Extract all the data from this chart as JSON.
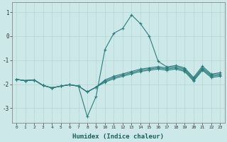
{
  "xlabel": "Humidex (Indice chaleur)",
  "background_color": "#cce8e8",
  "grid_color": "#b8d8d8",
  "line_color": "#2d7d7d",
  "xlim": [
    -0.5,
    23.5
  ],
  "ylim": [
    -3.6,
    1.4
  ],
  "yticks": [
    -3,
    -2,
    -1,
    0,
    1
  ],
  "xtick_labels": [
    "0",
    "1",
    "2",
    "3",
    "4",
    "5",
    "6",
    "7",
    "8",
    "9",
    "10",
    "11",
    "12",
    "13",
    "14",
    "15",
    "16",
    "17",
    "18",
    "19",
    "20",
    "21",
    "22",
    "23"
  ],
  "series": [
    [
      [
        0,
        -1.8
      ],
      [
        1,
        -1.85
      ],
      [
        2,
        -1.82
      ],
      [
        3,
        -2.05
      ],
      [
        4,
        -2.15
      ],
      [
        5,
        -2.08
      ],
      [
        6,
        -2.02
      ],
      [
        7,
        -2.08
      ],
      [
        8,
        -3.35
      ],
      [
        9,
        -2.5
      ],
      [
        10,
        -0.55
      ],
      [
        11,
        0.12
      ],
      [
        12,
        0.32
      ],
      [
        13,
        0.88
      ],
      [
        14,
        0.52
      ],
      [
        15,
        0.0
      ],
      [
        16,
        -1.05
      ],
      [
        17,
        -1.28
      ],
      [
        18,
        -1.22
      ],
      [
        19,
        -1.32
      ],
      [
        20,
        -1.72
      ],
      [
        21,
        -1.25
      ],
      [
        22,
        -1.58
      ],
      [
        23,
        -1.52
      ]
    ],
    [
      [
        0,
        -1.8
      ],
      [
        1,
        -1.85
      ],
      [
        2,
        -1.82
      ],
      [
        3,
        -2.05
      ],
      [
        4,
        -2.15
      ],
      [
        5,
        -2.08
      ],
      [
        6,
        -2.02
      ],
      [
        7,
        -2.08
      ],
      [
        8,
        -2.32
      ],
      [
        9,
        -2.12
      ],
      [
        10,
        -1.82
      ],
      [
        11,
        -1.67
      ],
      [
        12,
        -1.57
      ],
      [
        13,
        -1.47
      ],
      [
        14,
        -1.37
      ],
      [
        15,
        -1.32
      ],
      [
        16,
        -1.27
      ],
      [
        17,
        -1.32
      ],
      [
        18,
        -1.27
      ],
      [
        19,
        -1.37
      ],
      [
        20,
        -1.77
      ],
      [
        21,
        -1.32
      ],
      [
        22,
        -1.62
      ],
      [
        23,
        -1.57
      ]
    ],
    [
      [
        0,
        -1.8
      ],
      [
        1,
        -1.85
      ],
      [
        2,
        -1.82
      ],
      [
        3,
        -2.05
      ],
      [
        4,
        -2.15
      ],
      [
        5,
        -2.08
      ],
      [
        6,
        -2.02
      ],
      [
        7,
        -2.08
      ],
      [
        8,
        -2.32
      ],
      [
        9,
        -2.12
      ],
      [
        10,
        -1.87
      ],
      [
        11,
        -1.72
      ],
      [
        12,
        -1.62
      ],
      [
        13,
        -1.52
      ],
      [
        14,
        -1.42
      ],
      [
        15,
        -1.37
      ],
      [
        16,
        -1.32
      ],
      [
        17,
        -1.37
      ],
      [
        18,
        -1.32
      ],
      [
        19,
        -1.42
      ],
      [
        20,
        -1.82
      ],
      [
        21,
        -1.37
      ],
      [
        22,
        -1.67
      ],
      [
        23,
        -1.62
      ]
    ],
    [
      [
        0,
        -1.8
      ],
      [
        1,
        -1.85
      ],
      [
        2,
        -1.82
      ],
      [
        3,
        -2.05
      ],
      [
        4,
        -2.15
      ],
      [
        5,
        -2.08
      ],
      [
        6,
        -2.02
      ],
      [
        7,
        -2.08
      ],
      [
        8,
        -2.32
      ],
      [
        9,
        -2.12
      ],
      [
        10,
        -1.92
      ],
      [
        11,
        -1.77
      ],
      [
        12,
        -1.67
      ],
      [
        13,
        -1.57
      ],
      [
        14,
        -1.47
      ],
      [
        15,
        -1.42
      ],
      [
        16,
        -1.37
      ],
      [
        17,
        -1.42
      ],
      [
        18,
        -1.37
      ],
      [
        19,
        -1.47
      ],
      [
        20,
        -1.87
      ],
      [
        21,
        -1.42
      ],
      [
        22,
        -1.72
      ],
      [
        23,
        -1.67
      ]
    ]
  ]
}
